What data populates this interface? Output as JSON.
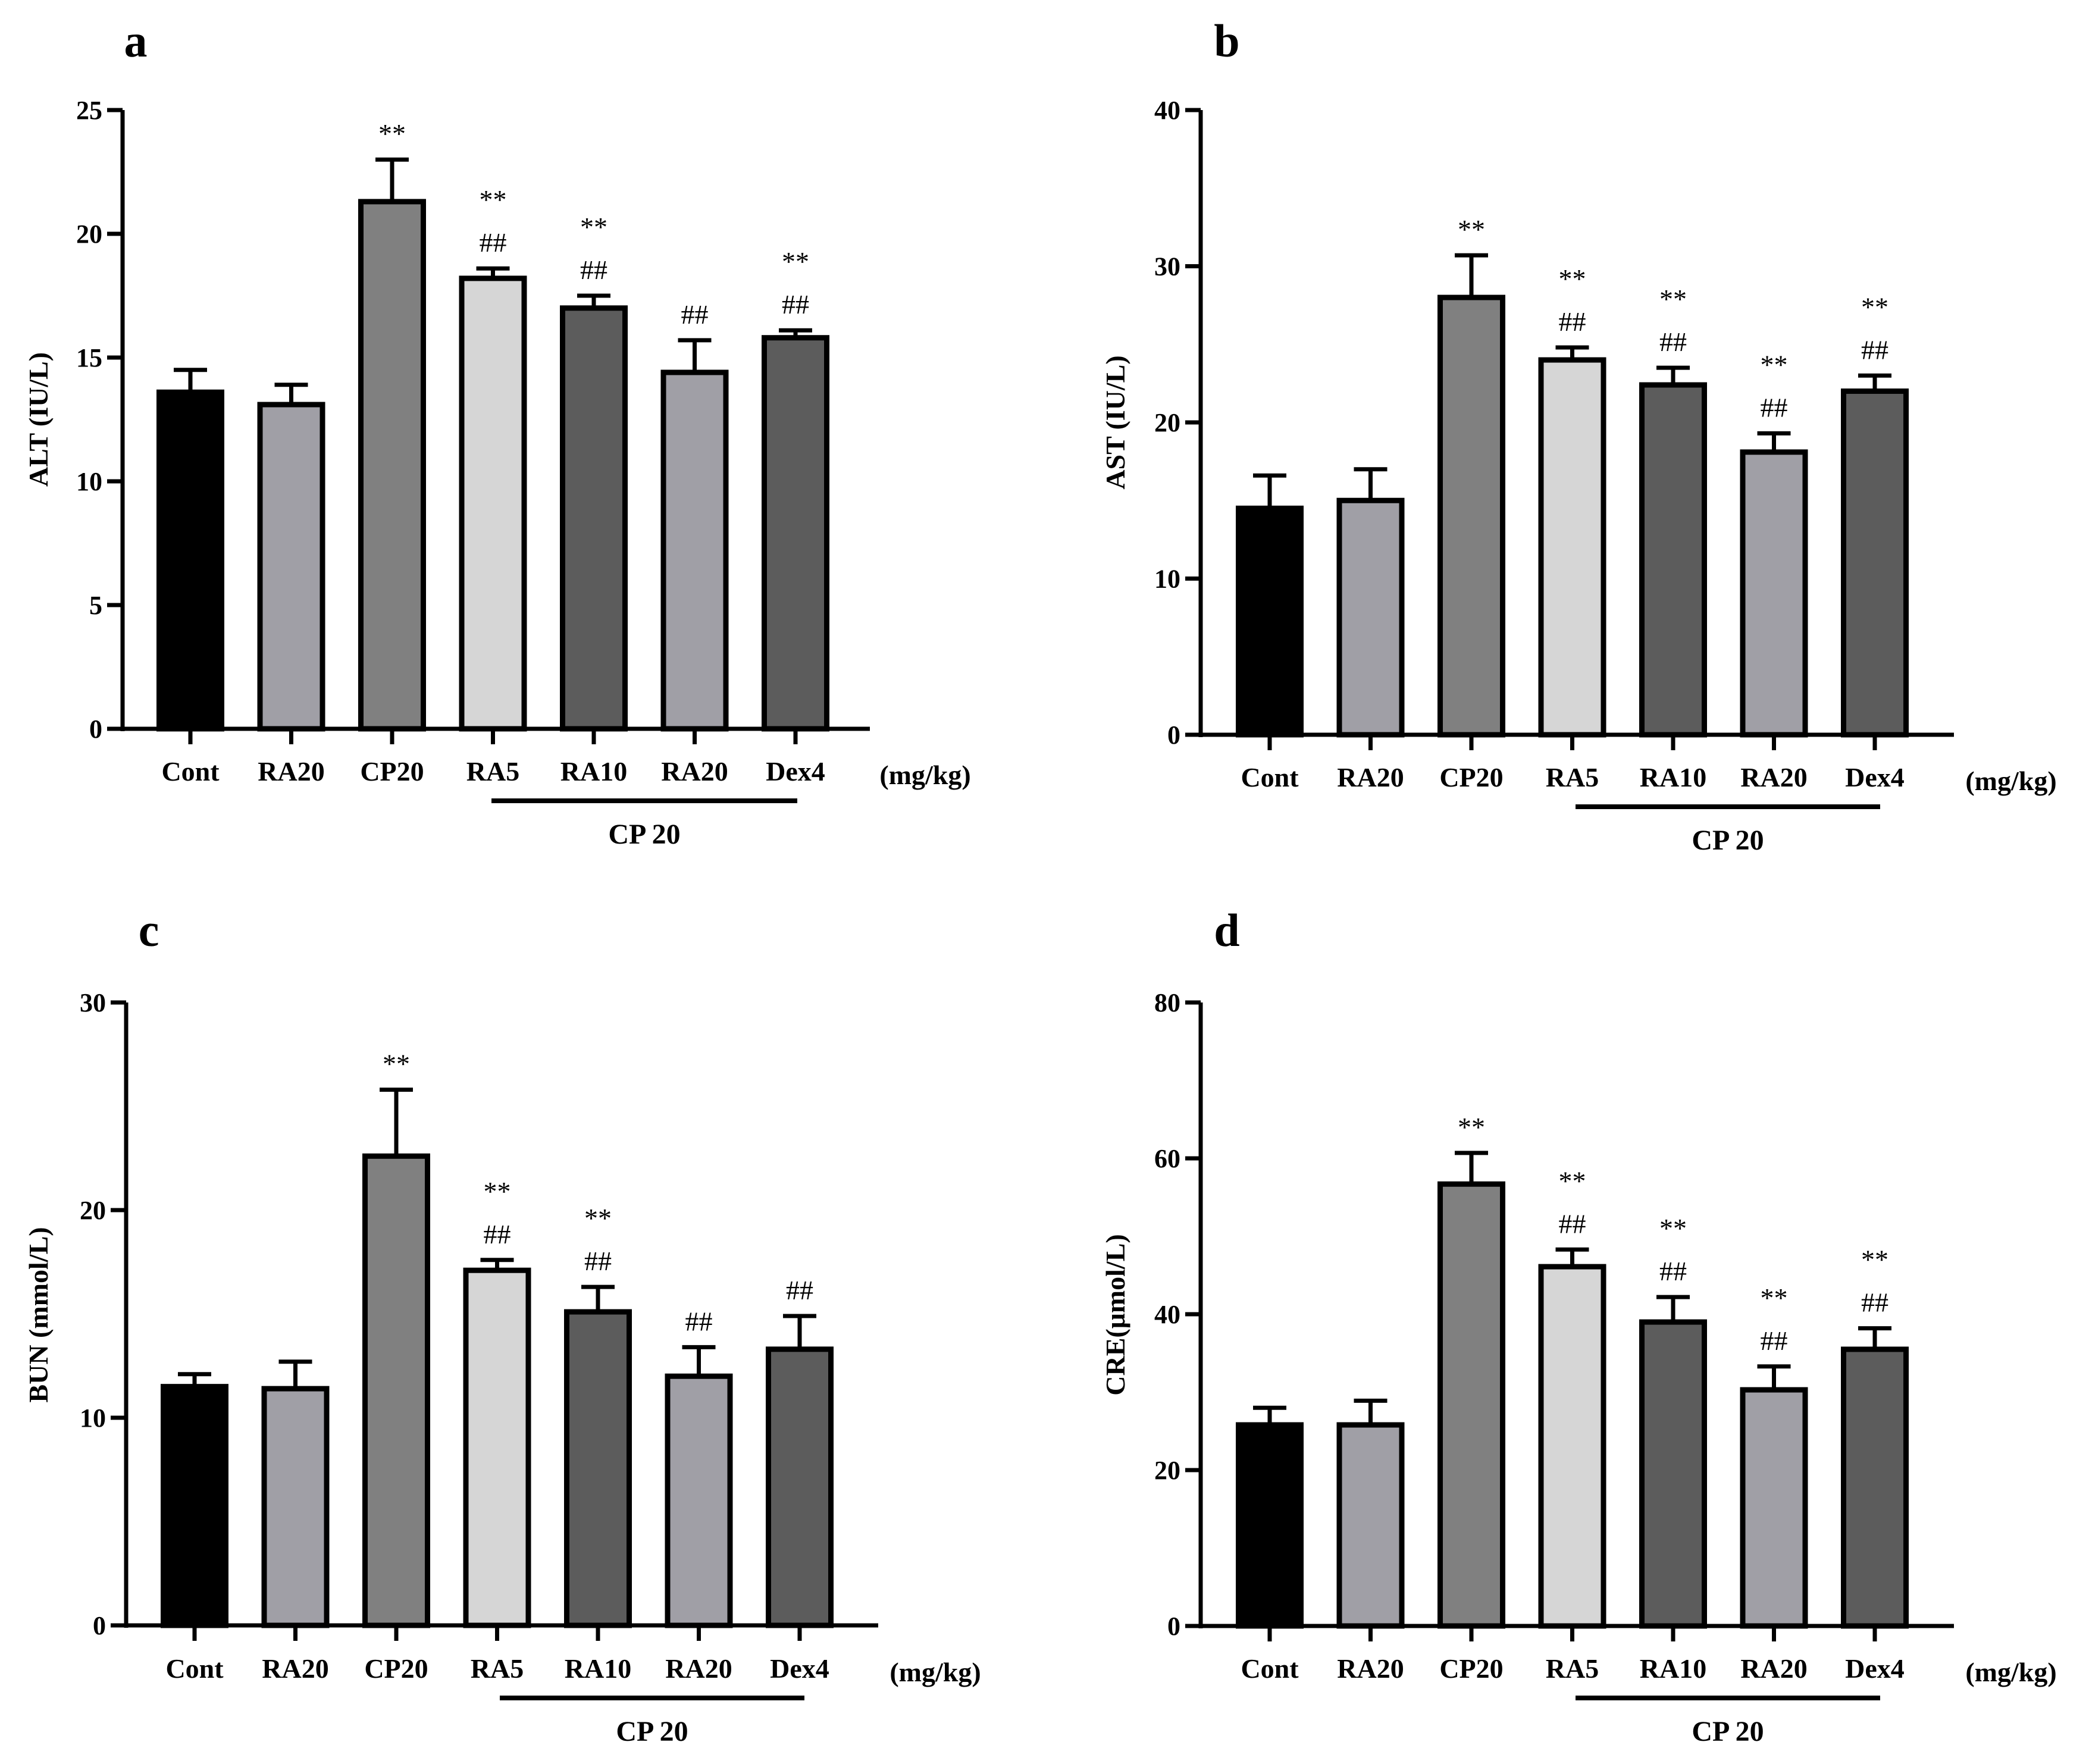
{
  "colors": {
    "Cont": "#000000",
    "RA20": "#a09fa6",
    "CP20": "#808080",
    "RA5": "#d6d6d6",
    "RA10": "#5c5c5c",
    "Dex4": "#5c5c5c",
    "outline": "#000000"
  },
  "chart_data": [
    {
      "panel": "a",
      "type": "bar",
      "ylabel": "ALT (IU/L)",
      "ylim": [
        0,
        25
      ],
      "yticks": [
        0,
        5,
        10,
        15,
        20,
        25
      ],
      "categories": [
        "Cont",
        "RA20",
        "CP20",
        "RA5",
        "RA10",
        "RA20",
        "Dex4"
      ],
      "color_keys": [
        "Cont",
        "RA20",
        "CP20",
        "RA5",
        "RA10",
        "RA20",
        "Dex4"
      ],
      "values": [
        13.6,
        13.1,
        21.3,
        18.2,
        17.0,
        14.4,
        15.8
      ],
      "errors": [
        0.9,
        0.8,
        1.7,
        0.4,
        0.5,
        1.3,
        0.3
      ],
      "annotations": [
        [],
        [],
        [
          "**"
        ],
        [
          "**",
          "##"
        ],
        [
          "**",
          "##"
        ],
        [
          "##"
        ],
        [
          "**",
          "##"
        ]
      ],
      "unit_label": "(mg/kg)",
      "group_label": "CP 20"
    },
    {
      "panel": "b",
      "type": "bar",
      "ylabel": "AST (IU/L)",
      "ylim": [
        0,
        40
      ],
      "yticks": [
        0,
        10,
        20,
        30,
        40
      ],
      "categories": [
        "Cont",
        "RA20",
        "CP20",
        "RA5",
        "RA10",
        "RA20",
        "Dex4"
      ],
      "color_keys": [
        "Cont",
        "RA20",
        "CP20",
        "RA5",
        "RA10",
        "RA20",
        "Dex4"
      ],
      "values": [
        14.5,
        15.0,
        28.0,
        24.0,
        22.4,
        18.1,
        22.0
      ],
      "errors": [
        2.1,
        2.0,
        2.7,
        0.8,
        1.1,
        1.2,
        1.0
      ],
      "annotations": [
        [],
        [],
        [
          "**"
        ],
        [
          "**",
          "##"
        ],
        [
          "**",
          "##"
        ],
        [
          "**",
          "##"
        ],
        [
          "**",
          "##"
        ]
      ],
      "unit_label": "(mg/kg)",
      "group_label": "CP 20"
    },
    {
      "panel": "c",
      "type": "bar",
      "ylabel": "BUN (mmol/L)",
      "ylim": [
        0,
        30
      ],
      "yticks": [
        0,
        10,
        20,
        30
      ],
      "categories": [
        "Cont",
        "RA20",
        "CP20",
        "RA5",
        "RA10",
        "RA20",
        "Dex4"
      ],
      "color_keys": [
        "Cont",
        "RA20",
        "CP20",
        "RA5",
        "RA10",
        "RA20",
        "Dex4"
      ],
      "values": [
        11.5,
        11.4,
        22.6,
        17.1,
        15.1,
        12.0,
        13.3
      ],
      "errors": [
        0.6,
        1.3,
        3.2,
        0.5,
        1.2,
        1.4,
        1.6
      ],
      "annotations": [
        [],
        [],
        [
          "**"
        ],
        [
          "**",
          "##"
        ],
        [
          "**",
          "##"
        ],
        [
          "##"
        ],
        [
          "##"
        ]
      ],
      "unit_label": "(mg/kg)",
      "group_label": "CP 20"
    },
    {
      "panel": "d",
      "type": "bar",
      "ylabel": "CRE(μmol/L)",
      "ylim": [
        0,
        80
      ],
      "yticks": [
        0,
        20,
        40,
        60,
        80
      ],
      "categories": [
        "Cont",
        "RA20",
        "CP20",
        "RA5",
        "RA10",
        "RA20",
        "Dex4"
      ],
      "color_keys": [
        "Cont",
        "RA20",
        "CP20",
        "RA5",
        "RA10",
        "RA20",
        "Dex4"
      ],
      "values": [
        25.8,
        25.8,
        56.7,
        46.1,
        39.0,
        30.3,
        35.5
      ],
      "errors": [
        2.2,
        3.1,
        4.0,
        2.2,
        3.2,
        3.0,
        2.7
      ],
      "annotations": [
        [],
        [],
        [
          "**"
        ],
        [
          "**",
          "##"
        ],
        [
          "**",
          "##"
        ],
        [
          "**",
          "##"
        ],
        [
          "**",
          "##"
        ]
      ],
      "unit_label": "(mg/kg)",
      "group_label": "CP 20"
    }
  ]
}
